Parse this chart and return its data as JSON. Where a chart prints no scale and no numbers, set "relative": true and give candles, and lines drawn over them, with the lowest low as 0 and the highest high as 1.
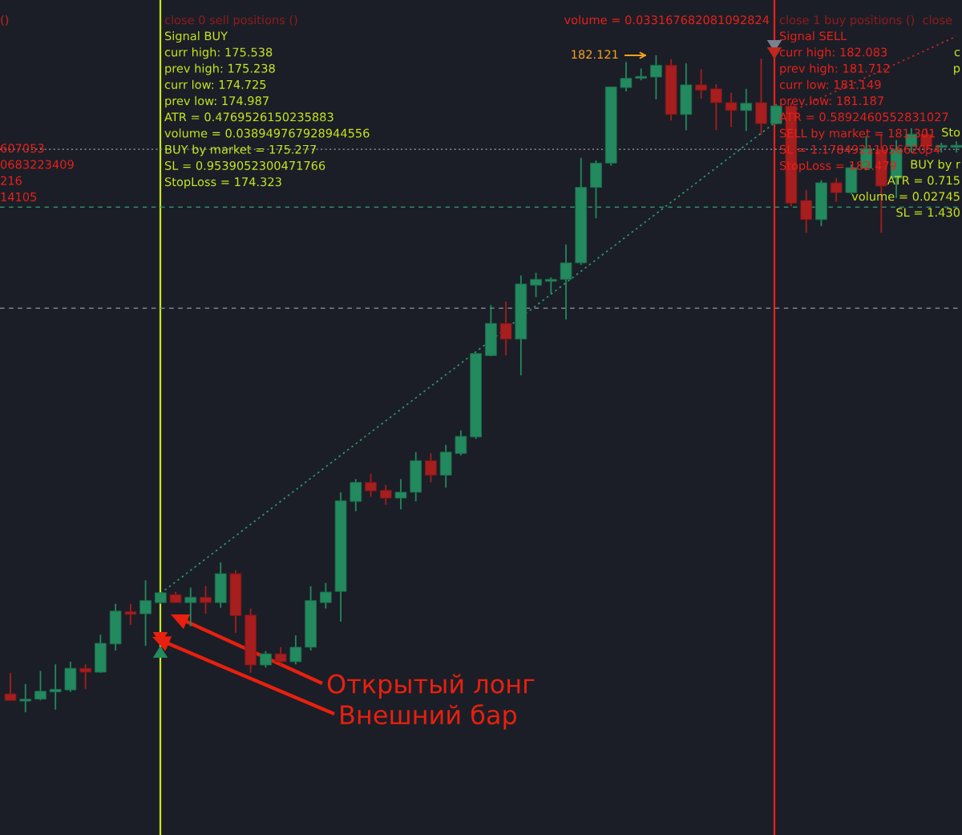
{
  "chart_data": {
    "type": "candlestick",
    "relative": true,
    "grid": false,
    "categories": [
      null,
      null,
      null,
      null,
      null,
      null,
      null,
      null,
      null,
      null,
      null,
      null,
      null,
      null,
      null,
      null,
      null,
      null,
      null,
      null,
      null,
      null,
      null,
      null,
      null,
      null,
      null,
      null,
      null,
      null,
      null,
      null,
      null,
      null,
      null,
      null,
      null,
      null,
      null,
      null,
      null,
      null,
      null,
      null,
      null,
      null,
      null,
      null,
      null,
      null,
      null,
      null,
      null,
      null,
      null,
      null,
      null,
      null,
      null,
      null,
      null,
      null,
      null,
      null
    ],
    "ohlc": [
      [
        0.028,
        0.06,
        0.018,
        0.018
      ],
      [
        0.017,
        0.043,
        0,
        0.018
      ],
      [
        0.02,
        0.063,
        0.018,
        0.032
      ],
      [
        0.031,
        0.073,
        0.004,
        0.035
      ],
      [
        0.034,
        0.077,
        0.031,
        0.067
      ],
      [
        0.067,
        0.073,
        0.035,
        0.061
      ],
      [
        0.061,
        0.118,
        0.06,
        0.105
      ],
      [
        0.104,
        0.165,
        0.094,
        0.154
      ],
      [
        0.153,
        0.165,
        0.133,
        0.149
      ],
      [
        0.15,
        0.201,
        0.101,
        0.17
      ],
      [
        0.167,
        0.182,
        0.165,
        0.182
      ],
      [
        0.179,
        0.183,
        0.167,
        0.167
      ],
      [
        0.167,
        0.19,
        0.131,
        0.175
      ],
      [
        0.175,
        0.192,
        0.15,
        0.167
      ],
      [
        0.167,
        0.228,
        0.159,
        0.211
      ],
      [
        0.211,
        0.216,
        0.121,
        0.147
      ],
      [
        0.148,
        0.158,
        0.06,
        0.072
      ],
      [
        0.072,
        0.093,
        0.068,
        0.089
      ],
      [
        0.089,
        0.099,
        0.072,
        0.077
      ],
      [
        0.077,
        0.117,
        0.073,
        0.099
      ],
      [
        0.099,
        0.192,
        0.094,
        0.17
      ],
      [
        0.167,
        0.197,
        0.158,
        0.183
      ],
      [
        0.184,
        0.335,
        0.138,
        0.322
      ],
      [
        0.321,
        0.355,
        0.306,
        0.35
      ],
      [
        0.35,
        0.363,
        0.328,
        0.337
      ],
      [
        0.338,
        0.346,
        0.316,
        0.326
      ],
      [
        0.326,
        0.355,
        0.309,
        0.335
      ],
      [
        0.335,
        0.396,
        0.321,
        0.383
      ],
      [
        0.383,
        0.394,
        0.35,
        0.361
      ],
      [
        0.361,
        0.407,
        0.342,
        0.396
      ],
      [
        0.394,
        0.429,
        0.391,
        0.42
      ],
      [
        0.419,
        0.546,
        0.416,
        0.546
      ],
      [
        0.543,
        0.62,
        0.542,
        0.592
      ],
      [
        0.592,
        0.625,
        0.543,
        0.568
      ],
      [
        0.568,
        0.665,
        0.513,
        0.652
      ],
      [
        0.65,
        0.669,
        0.632,
        0.659
      ],
      [
        0.656,
        0.662,
        0.637,
        0.658
      ],
      [
        0.659,
        0.712,
        0.598,
        0.684
      ],
      [
        0.684,
        0.844,
        0.681,
        0.799
      ],
      [
        0.799,
        0.84,
        0.752,
        0.836
      ],
      [
        0.836,
        0.952,
        0.832,
        0.952
      ],
      [
        0.951,
        0.99,
        0.945,
        0.965
      ],
      [
        0.965,
        0.98,
        0.962,
        0.968
      ],
      [
        0.967,
        1,
        0.933,
        0.985
      ],
      [
        0.985,
        0.994,
        0.901,
        0.91
      ],
      [
        0.91,
        0.988,
        0.886,
        0.955
      ],
      [
        0.955,
        0.979,
        0.934,
        0.947
      ],
      [
        0.949,
        0.956,
        0.886,
        0.928
      ],
      [
        0.928,
        0.943,
        0.891,
        0.916
      ],
      [
        0.916,
        0.949,
        0.885,
        0.927
      ],
      [
        0.928,
        0.995,
        0.879,
        0.896
      ],
      [
        0.896,
        0.926,
        0.895,
        0.923
      ],
      [
        0.923,
        0.928,
        0.77,
        0.775
      ],
      [
        0.779,
        0.795,
        0.73,
        0.75
      ],
      [
        0.75,
        0.81,
        0.74,
        0.806
      ],
      [
        0.806,
        0.813,
        0.777,
        0.791
      ],
      [
        0.791,
        0.834,
        0.789,
        0.829
      ],
      [
        0.828,
        0.877,
        0.825,
        0.858
      ],
      [
        0.857,
        0.879,
        0.73,
        0.801
      ],
      [
        0.813,
        0.871,
        0.783,
        0.856
      ],
      [
        0.861,
        0.889,
        0.852,
        0.88
      ],
      [
        0.88,
        0.889,
        0.846,
        0.861
      ],
      [
        0.86,
        0.867,
        0.852,
        0.861
      ],
      [
        0.86,
        0.869,
        0.852,
        0.862
      ]
    ],
    "colors": [
      "#a61e1e",
      "#228a5e",
      "#228a5e",
      "#228a5e",
      "#228a5e",
      "#a61e1e",
      "#228a5e",
      "#228a5e",
      "#a61e1e",
      "#228a5e",
      "#228a5e",
      "#a61e1e",
      "#228a5e",
      "#a61e1e",
      "#228a5e",
      "#a61e1e",
      "#a61e1e",
      "#228a5e",
      "#a61e1e",
      "#228a5e",
      "#228a5e",
      "#228a5e",
      "#228a5e",
      "#228a5e",
      "#a61e1e",
      "#a61e1e",
      "#228a5e",
      "#228a5e",
      "#a61e1e",
      "#228a5e",
      "#228a5e",
      "#228a5e",
      "#228a5e",
      "#a61e1e",
      "#228a5e",
      "#228a5e",
      "#228a5e",
      "#228a5e",
      "#228a5e",
      "#228a5e",
      "#228a5e",
      "#228a5e",
      "#228a5e",
      "#228a5e",
      "#a61e1e",
      "#228a5e",
      "#a61e1e",
      "#a61e1e",
      "#a61e1e",
      "#228a5e",
      "#a61e1e",
      "#228a5e",
      "#a61e1e",
      "#a61e1e",
      "#228a5e",
      "#a61e1e",
      "#228a5e",
      "#228a5e",
      "#a61e1e",
      "#228a5e",
      "#228a5e",
      "#a61e1e",
      "#228a5e",
      "#228a5e"
    ],
    "series": [
      {
        "type": "line",
        "values": [
          null,
          null,
          null,
          null,
          null,
          null,
          null,
          null,
          null,
          null,
          0.181,
          null,
          null,
          null,
          null,
          null,
          null,
          null,
          null,
          null,
          null,
          null,
          null,
          null,
          null,
          null,
          null,
          null,
          null,
          null,
          null,
          null,
          null,
          null,
          null,
          null,
          null,
          null,
          null,
          null,
          null,
          null,
          null,
          null,
          null,
          null,
          null,
          null,
          null,
          null,
          null,
          0.899,
          null,
          null,
          null,
          null,
          null,
          null,
          null,
          null,
          null,
          null,
          null,
          null
        ],
        "color": "#2a9d70",
        "line_style": "dotted"
      },
      {
        "type": "line",
        "values": [
          null,
          null,
          null,
          null,
          null,
          null,
          null,
          null,
          null,
          null,
          null,
          null,
          null,
          null,
          null,
          null,
          null,
          null,
          null,
          null,
          null,
          null,
          null,
          null,
          null,
          null,
          null,
          null,
          null,
          null,
          null,
          null,
          null,
          null,
          null,
          null,
          null,
          null,
          null,
          null,
          null,
          null,
          null,
          null,
          null,
          null,
          null,
          null,
          null,
          null,
          null,
          0.904,
          null,
          null,
          null,
          null,
          null,
          null,
          null,
          null,
          null,
          null,
          null,
          1.029
        ],
        "color": "#c0282a",
        "line_style": "dotted"
      }
    ],
    "ref_lines": [
      {
        "axis": "y",
        "value": 0.857,
        "color": "#9aa0a6",
        "line_style": "dotted"
      },
      {
        "axis": "y",
        "value": 0.769,
        "color": "#2e8b6a",
        "line_style": "dashed"
      },
      {
        "axis": "y",
        "value": 0.615,
        "color": "#7b8190",
        "line_style": "dashed"
      }
    ],
    "annotations": [
      "()",
      "close 0 sell positions ()",
      "Signal BUY\ncurr high: 175.538\nprev high: 175.238\ncurr low: 174.725\nprev low: 174.987\nATR = 0.4769526150235883\nvolume = 0.038949767928944556\nBUY by market = 175.277\nSL = 0.9539052300471766\nStopLoss = 174.323",
      "607053\n0683223409\n216\n14105",
      "volume = 0.033167682081092824",
      "close 1 buy positions ()  close",
      "Signal SELL\ncurr high: 182.083\nprev high: 181.712\ncurr low: 181.149\nprev low: 181.187\nATR = 0.5892460552831027\nSELL by market = 181.301\nSL = 1.1784921105662054\nStopLoss = 182.479",
      "182.121",
      "c\np",
      "Sto",
      "BUY by r",
      "ATR = 0.715",
      "volume = 0.02745",
      "SL = 1.430",
      "Открытый лонг",
      "Внешний бар"
    ]
  }
}
